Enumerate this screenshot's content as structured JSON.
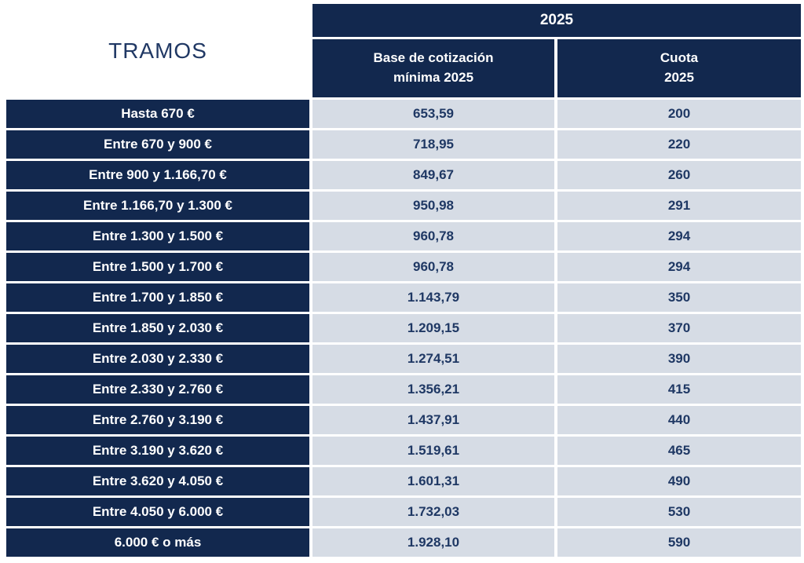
{
  "colors": {
    "navy": "#12284E",
    "light-cell": "#D6DCE5",
    "value-text": "#1F3864",
    "title-text": "#203864",
    "header-text": "#FFFFFF",
    "page-bg": "#FFFFFF"
  },
  "table": {
    "title": "TRAMOS",
    "year_header": "2025",
    "columns": {
      "base_line1": "Base de cotización",
      "base_line2": "mínima 2025",
      "cuota_line1": "Cuota",
      "cuota_line2": "2025"
    },
    "rows": [
      {
        "tramo": "Hasta 670 €",
        "base": "653,59",
        "cuota": "200"
      },
      {
        "tramo": "Entre 670 y 900 €",
        "base": "718,95",
        "cuota": "220"
      },
      {
        "tramo": "Entre 900 y 1.166,70 €",
        "base": "849,67",
        "cuota": "260"
      },
      {
        "tramo": "Entre 1.166,70 y 1.300 €",
        "base": "950,98",
        "cuota": "291"
      },
      {
        "tramo": "Entre 1.300 y 1.500 €",
        "base": "960,78",
        "cuota": "294"
      },
      {
        "tramo": "Entre 1.500 y 1.700 €",
        "base": "960,78",
        "cuota": "294"
      },
      {
        "tramo": "Entre 1.700 y 1.850 €",
        "base": "1.143,79",
        "cuota": "350"
      },
      {
        "tramo": "Entre 1.850 y 2.030 €",
        "base": "1.209,15",
        "cuota": "370"
      },
      {
        "tramo": "Entre 2.030 y 2.330 €",
        "base": "1.274,51",
        "cuota": "390"
      },
      {
        "tramo": "Entre 2.330 y 2.760 €",
        "base": "1.356,21",
        "cuota": "415"
      },
      {
        "tramo": "Entre 2.760 y 3.190 €",
        "base": "1.437,91",
        "cuota": "440"
      },
      {
        "tramo": "Entre 3.190 y 3.620 €",
        "base": "1.519,61",
        "cuota": "465"
      },
      {
        "tramo": "Entre 3.620 y 4.050 €",
        "base": "1.601,31",
        "cuota": "490"
      },
      {
        "tramo": "Entre 4.050 y 6.000 €",
        "base": "1.732,03",
        "cuota": "530"
      },
      {
        "tramo": "6.000 € o más",
        "base": "1.928,10",
        "cuota": "590"
      }
    ]
  },
  "chart_data": {
    "type": "table",
    "title": "TRAMOS 2025",
    "column_groups": [
      "TRAMOS",
      "2025"
    ],
    "columns": [
      "TRAMOS",
      "Base de cotización mínima 2025",
      "Cuota 2025"
    ],
    "rows": [
      [
        "Hasta 670 €",
        653.59,
        200
      ],
      [
        "Entre 670 y 900 €",
        718.95,
        220
      ],
      [
        "Entre 900 y 1.166,70 €",
        849.67,
        260
      ],
      [
        "Entre 1.166,70 y 1.300 €",
        950.98,
        291
      ],
      [
        "Entre 1.300 y 1.500 €",
        960.78,
        294
      ],
      [
        "Entre 1.500 y 1.700 €",
        960.78,
        294
      ],
      [
        "Entre 1.700 y 1.850 €",
        1143.79,
        350
      ],
      [
        "Entre 1.850 y 2.030 €",
        1209.15,
        370
      ],
      [
        "Entre 2.030 y 2.330 €",
        1274.51,
        390
      ],
      [
        "Entre 2.330 y 2.760 €",
        1356.21,
        415
      ],
      [
        "Entre 2.760 y 3.190 €",
        1437.91,
        440
      ],
      [
        "Entre 3.190 y 3.620 €",
        1519.61,
        465
      ],
      [
        "Entre 3.620 y 4.050 €",
        1601.31,
        490
      ],
      [
        "Entre 4.050 y 6.000 €",
        1732.03,
        530
      ],
      [
        "6.000 € o más",
        1928.1,
        590
      ]
    ]
  }
}
